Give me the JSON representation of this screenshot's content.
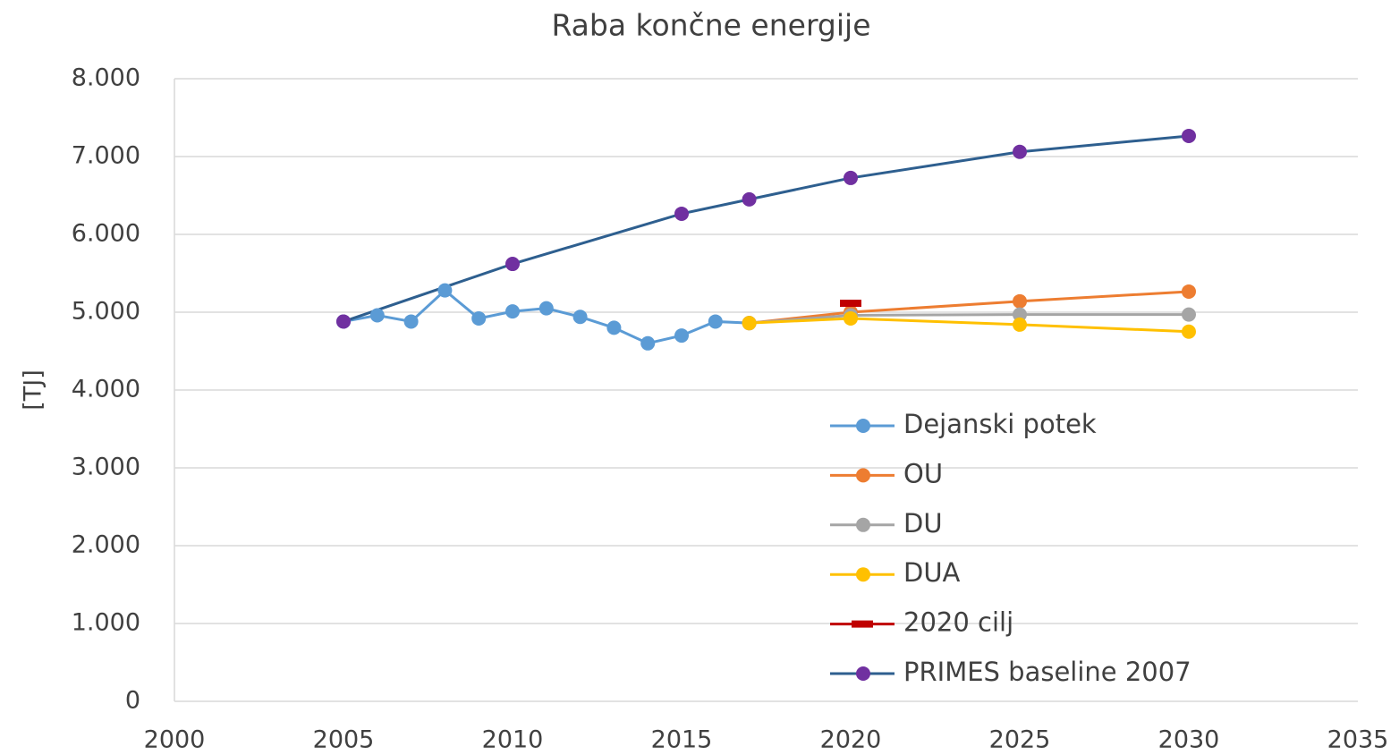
{
  "chart_data": {
    "type": "line",
    "title": "Raba končne energije",
    "y_label": "[TJ]",
    "xlim": [
      2000,
      2035
    ],
    "xticks": [
      2000,
      2005,
      2010,
      2015,
      2020,
      2025,
      2030,
      2035
    ],
    "ylim": [
      0,
      8000
    ],
    "yticks": [
      0,
      {
        "value": 1000,
        "label": "1.000"
      },
      {
        "value": 2000,
        "label": "2.000"
      },
      {
        "value": 3000,
        "label": "3.000"
      },
      {
        "value": 4000,
        "label": "4.000"
      },
      {
        "value": 5000,
        "label": "5.000"
      },
      {
        "value": 6000,
        "label": "6.000"
      },
      {
        "value": 7000,
        "label": "7.000"
      },
      {
        "value": 8000,
        "label": "8.000"
      }
    ],
    "grid": true,
    "legend": "lower center",
    "series": [
      {
        "name": "Dejanski potek",
        "color": "#5b9bd5",
        "marker_color": "#5b9bd5",
        "marker": "circle",
        "x": [
          2005,
          2006,
          2007,
          2008,
          2009,
          2010,
          2011,
          2012,
          2013,
          2014,
          2015,
          2016,
          2017
        ],
        "values": [
          4880,
          4960,
          4880,
          5280,
          4920,
          5010,
          5050,
          4940,
          4800,
          4600,
          4700,
          4880,
          4860
        ]
      },
      {
        "name": "OU",
        "color": "#ed7d31",
        "marker_color": "#ed7d31",
        "marker": "circle",
        "x": [
          2017,
          2020,
          2025,
          2030
        ],
        "values": [
          4860,
          5000,
          5140,
          5265
        ]
      },
      {
        "name": "DU",
        "color": "#a5a5a5",
        "marker_color": "#a5a5a5",
        "marker": "circle",
        "x": [
          2017,
          2020,
          2025,
          2030
        ],
        "values": [
          4860,
          4960,
          4970,
          4970
        ]
      },
      {
        "name": "DUA",
        "color": "#ffc000",
        "marker_color": "#ffc000",
        "marker": "circle",
        "x": [
          2017,
          2020,
          2025,
          2030
        ],
        "values": [
          4860,
          4920,
          4840,
          4750
        ]
      },
      {
        "name": "2020 cilj",
        "color": "#c00000",
        "marker_color": "#c00000",
        "marker": "dash",
        "x": [
          2020
        ],
        "values": [
          5115
        ]
      },
      {
        "name": "PRIMES baseline 2007",
        "color": "#2e5f8f",
        "marker_color": "#7030a0",
        "marker": "circle",
        "x": [
          2005,
          2010,
          2015,
          2017,
          2020,
          2025,
          2030
        ],
        "values": [
          4880,
          5620,
          6265,
          6450,
          6725,
          7060,
          7265
        ]
      }
    ]
  }
}
